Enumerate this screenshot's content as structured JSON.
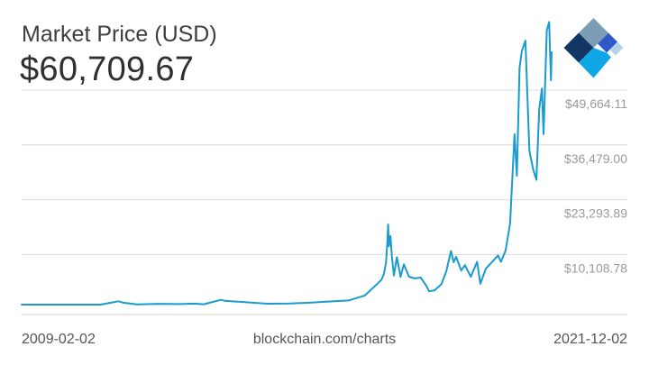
{
  "header": {
    "title": "Market Price (USD)",
    "value": "$60,709.67"
  },
  "footer": {
    "start_date": "2009-02-02",
    "source": "blockchain.com/charts",
    "end_date": "2021-12-02"
  },
  "logo": {
    "icon": "blockchain-cube-logo-icon",
    "colors": [
      "#123765",
      "#7b9db6",
      "#3059c8",
      "#0fa7e6",
      "#b1d4e6"
    ]
  },
  "chart_data": {
    "type": "line",
    "title": "Market Price (USD)",
    "xlabel": "",
    "ylabel": "",
    "x_range": [
      "2009-02-02",
      "2021-12-02"
    ],
    "ylim": [
      0,
      67000
    ],
    "y_ticks": [
      {
        "value": 10108.78,
        "label": "$10,108.78"
      },
      {
        "value": 23293.89,
        "label": "$23,293.89"
      },
      {
        "value": 36479.0,
        "label": "$36,479.00"
      },
      {
        "value": 49664.11,
        "label": "$49,664.11"
      }
    ],
    "grid": true,
    "line_color": "#1a9bd0",
    "series": [
      {
        "values": [
          [
            "2009-02-02",
            0
          ],
          [
            "2010-02-01",
            0
          ],
          [
            "2010-07-17",
            0.07
          ],
          [
            "2011-01-01",
            0.3
          ],
          [
            "2011-06-08",
            800
          ],
          [
            "2011-07-15",
            500
          ],
          [
            "2011-11-18",
            60
          ],
          [
            "2012-06-01",
            200
          ],
          [
            "2012-12-01",
            130
          ],
          [
            "2013-04-09",
            230
          ],
          [
            "2013-07-01",
            90
          ],
          [
            "2013-11-30",
            1150
          ],
          [
            "2014-01-05",
            900
          ],
          [
            "2014-06-01",
            650
          ],
          [
            "2015-01-15",
            210
          ],
          [
            "2015-08-01",
            260
          ],
          [
            "2016-01-01",
            430
          ],
          [
            "2016-06-01",
            680
          ],
          [
            "2017-01-01",
            1000
          ],
          [
            "2017-05-25",
            2200
          ],
          [
            "2017-09-01",
            4700
          ],
          [
            "2017-10-20",
            6000
          ],
          [
            "2017-11-10",
            7400
          ],
          [
            "2017-11-28",
            10000
          ],
          [
            "2017-12-10",
            15000
          ],
          [
            "2017-12-17",
            19300
          ],
          [
            "2017-12-24",
            14000
          ],
          [
            "2018-01-07",
            16500
          ],
          [
            "2018-01-20",
            11500
          ],
          [
            "2018-02-06",
            7000
          ],
          [
            "2018-03-05",
            11400
          ],
          [
            "2018-04-06",
            6700
          ],
          [
            "2018-05-05",
            9700
          ],
          [
            "2018-06-20",
            6700
          ],
          [
            "2018-08-10",
            6300
          ],
          [
            "2018-10-01",
            6500
          ],
          [
            "2018-11-20",
            4500
          ],
          [
            "2018-12-15",
            3200
          ],
          [
            "2019-02-01",
            3450
          ],
          [
            "2019-04-02",
            4900
          ],
          [
            "2019-05-15",
            8000
          ],
          [
            "2019-06-26",
            12900
          ],
          [
            "2019-07-20",
            10200
          ],
          [
            "2019-08-10",
            11500
          ],
          [
            "2019-09-25",
            8200
          ],
          [
            "2019-10-27",
            9500
          ],
          [
            "2019-12-18",
            6700
          ],
          [
            "2020-02-12",
            10300
          ],
          [
            "2020-03-12",
            5000
          ],
          [
            "2020-04-30",
            8700
          ],
          [
            "2020-06-01",
            9600
          ],
          [
            "2020-08-15",
            11800
          ],
          [
            "2020-09-10",
            10300
          ],
          [
            "2020-10-21",
            13000
          ],
          [
            "2020-11-30",
            19500
          ],
          [
            "2021-01-08",
            41000
          ],
          [
            "2021-01-28",
            31000
          ],
          [
            "2021-02-21",
            57000
          ],
          [
            "2021-03-13",
            61000
          ],
          [
            "2021-04-14",
            63500
          ],
          [
            "2021-05-19",
            37000
          ],
          [
            "2021-06-22",
            32500
          ],
          [
            "2021-07-20",
            30000
          ],
          [
            "2021-08-14",
            47000
          ],
          [
            "2021-09-07",
            52000
          ],
          [
            "2021-09-21",
            41000
          ],
          [
            "2021-10-20",
            66000
          ],
          [
            "2021-11-10",
            68000
          ],
          [
            "2021-11-26",
            54000
          ],
          [
            "2021-12-02",
            60709.67
          ]
        ]
      }
    ]
  }
}
